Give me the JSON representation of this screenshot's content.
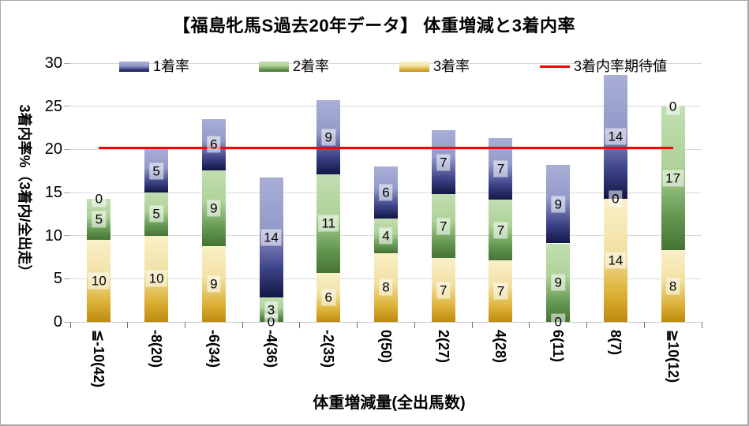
{
  "chart_data": {
    "type": "bar",
    "variant": "stacked-column-with-expected-line",
    "title": "【福島牝馬S過去20年データ】 体重増減と3着内率",
    "xlabel": "体重増減量(全出馬数)",
    "ylabel": "3着内率%（3着内/全出走）",
    "ylim": [
      0,
      30
    ],
    "yticks": [
      0,
      5,
      10,
      15,
      20,
      25,
      30
    ],
    "grid": "horizontal",
    "legend_position": "top",
    "legend_order": [
      "1着率",
      "2着率",
      "3着率",
      "3着内率期待値"
    ],
    "categories": [
      "≦-10(42)",
      "-8(20)",
      "-6(34)",
      "-4(36)",
      "-2(35)",
      "0(50)",
      "2(27)",
      "4(28)",
      "6(11)",
      "8(7)",
      "≧10(12)"
    ],
    "series": [
      {
        "name": "3着率",
        "stack_position": "bottom",
        "values": [
          9.5,
          10.0,
          8.8,
          0.0,
          5.7,
          8.0,
          7.4,
          7.1,
          0.0,
          14.3,
          8.3
        ],
        "labels": [
          "10",
          "10",
          "9",
          "0",
          "6",
          "8",
          "7",
          "7",
          "0",
          "14",
          "8"
        ],
        "colors": {
          "top": "#faf0c8",
          "upper": "#f1e1a4",
          "lower": "#ddb238",
          "bottom": "#bd8a0e"
        }
      },
      {
        "name": "2着率",
        "stack_position": "middle",
        "values": [
          4.8,
          5.0,
          8.8,
          2.8,
          11.4,
          4.0,
          7.4,
          7.1,
          9.1,
          0.0,
          16.7
        ],
        "labels": [
          "5",
          "5",
          "9",
          "3",
          "11",
          "4",
          "7",
          "7",
          "9",
          "0",
          "17"
        ],
        "colors": {
          "top": "#c2deb1",
          "upper": "#aed298",
          "lower": "#649851",
          "bottom": "#467334"
        }
      },
      {
        "name": "1着率",
        "stack_position": "top",
        "values": [
          0.0,
          5.0,
          5.9,
          13.9,
          8.6,
          6.0,
          7.4,
          7.1,
          9.1,
          14.3,
          0.0
        ],
        "labels": [
          "0",
          "5",
          "6",
          "14",
          "9",
          "6",
          "7",
          "7",
          "9",
          "14",
          "0"
        ],
        "colors": {
          "top": "#a8aed6",
          "upper": "#949bc9",
          "lower": "#3d4389",
          "bottom": "#121745"
        }
      }
    ],
    "line_series": {
      "name": "3着内率期待値",
      "value": 20.2,
      "color": "#ff0000"
    }
  }
}
